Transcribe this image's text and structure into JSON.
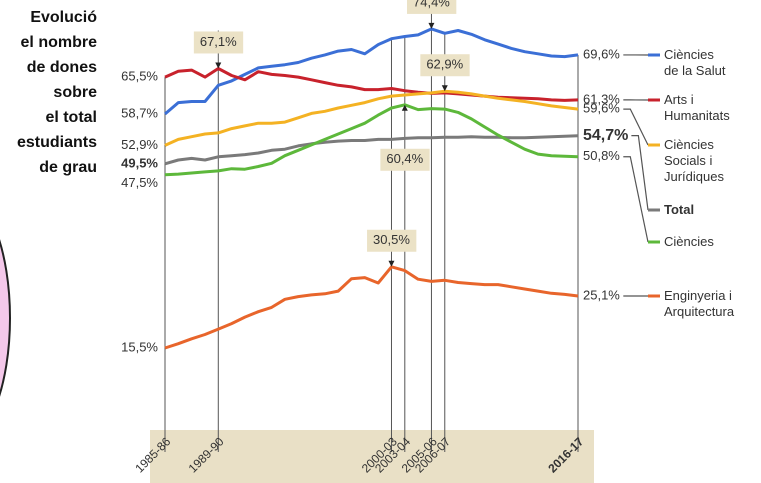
{
  "chart_data": {
    "type": "line",
    "title": [
      "Evolució",
      "el nombre",
      "de dones",
      "sobre",
      "el total",
      "estudiants",
      "de grau"
    ],
    "categories": [
      "1985-86",
      null,
      null,
      null,
      "1989-90",
      null,
      null,
      null,
      null,
      null,
      null,
      null,
      null,
      null,
      null,
      null,
      null,
      "2000-03",
      "2003-04",
      null,
      "2005-06",
      "2006-07",
      null,
      null,
      null,
      null,
      null,
      null,
      null,
      null,
      null,
      "2016-17"
    ],
    "ylim": [
      0,
      79
    ],
    "series": [
      {
        "name": "Ciències de la Salut",
        "color": "#3b6fd6",
        "values": [
          58.7,
          60.8,
          61.0,
          61.0,
          64.0,
          64.8,
          66.0,
          67.2,
          67.5,
          67.8,
          68.2,
          69.0,
          69.6,
          70.3,
          70.6,
          69.8,
          71.5,
          72.6,
          73.0,
          73.3,
          74.4,
          73.6,
          74.1,
          73.4,
          72.4,
          71.6,
          70.8,
          70.2,
          69.8,
          69.4,
          69.3,
          69.6
        ],
        "value_labels": [
          "58,7%",
          null,
          null,
          null,
          null,
          null,
          null,
          null,
          null,
          null,
          null,
          null,
          null,
          null,
          null,
          null,
          null,
          null,
          null,
          null,
          "74,4%",
          null,
          null,
          null,
          null,
          null,
          null,
          null,
          null,
          null,
          null,
          "69,6%"
        ]
      },
      {
        "name": "Arts i Humanitats",
        "color": "#c8222c",
        "values": [
          65.5,
          66.6,
          66.8,
          65.5,
          67.1,
          65.8,
          65.0,
          66.5,
          66.0,
          65.8,
          65.5,
          65.0,
          64.5,
          64.0,
          63.7,
          63.2,
          63.2,
          63.4,
          63.0,
          62.7,
          62.5,
          62.6,
          62.4,
          62.2,
          62.0,
          61.8,
          61.7,
          61.6,
          61.5,
          61.3,
          61.2,
          61.3
        ],
        "value_labels": [
          "65,5%",
          null,
          null,
          null,
          "67,1%",
          null,
          null,
          null,
          null,
          null,
          null,
          null,
          null,
          null,
          null,
          null,
          null,
          null,
          null,
          null,
          null,
          null,
          null,
          null,
          null,
          null,
          null,
          null,
          null,
          null,
          null,
          "61,3%"
        ]
      },
      {
        "name": "Ciències Socials i Jurídiques",
        "color": "#f4b223",
        "values": [
          52.9,
          54.0,
          54.5,
          55.0,
          55.2,
          56.0,
          56.5,
          57.0,
          57.0,
          57.2,
          58.0,
          58.8,
          59.2,
          59.8,
          60.3,
          60.8,
          61.5,
          62.0,
          62.2,
          62.4,
          62.6,
          62.9,
          62.7,
          62.4,
          62.0,
          61.6,
          61.3,
          61.0,
          60.6,
          60.2,
          59.9,
          59.6
        ],
        "value_labels": [
          "52,9%",
          null,
          null,
          null,
          null,
          null,
          null,
          null,
          null,
          null,
          null,
          null,
          null,
          null,
          null,
          null,
          null,
          null,
          null,
          null,
          null,
          "62,9%",
          null,
          null,
          null,
          null,
          null,
          null,
          null,
          null,
          null,
          "59,6%"
        ]
      },
      {
        "name": "Total",
        "color": "#7a7a7a",
        "bold": true,
        "values": [
          49.5,
          50.2,
          50.5,
          50.2,
          50.8,
          51.0,
          51.2,
          51.5,
          52.0,
          52.2,
          52.8,
          53.2,
          53.5,
          53.7,
          53.8,
          53.8,
          54.0,
          54.0,
          54.2,
          54.3,
          54.3,
          54.4,
          54.4,
          54.5,
          54.4,
          54.4,
          54.3,
          54.3,
          54.4,
          54.5,
          54.6,
          54.7
        ],
        "value_labels": [
          "49,5%",
          null,
          null,
          null,
          null,
          null,
          null,
          null,
          null,
          null,
          null,
          null,
          null,
          null,
          null,
          null,
          null,
          null,
          null,
          null,
          null,
          null,
          null,
          null,
          null,
          null,
          null,
          null,
          null,
          null,
          null,
          "54,7%"
        ]
      },
      {
        "name": "Ciències",
        "color": "#5db83b",
        "values": [
          47.5,
          47.6,
          47.8,
          48.0,
          48.2,
          48.6,
          48.5,
          49.0,
          49.6,
          51.0,
          52.0,
          53.0,
          54.0,
          55.0,
          56.0,
          57.0,
          58.5,
          59.8,
          60.4,
          59.5,
          59.7,
          59.6,
          59.0,
          57.8,
          56.3,
          54.8,
          53.5,
          52.2,
          51.3,
          51.0,
          50.9,
          50.8
        ],
        "value_labels": [
          "47,5%",
          null,
          null,
          null,
          null,
          null,
          null,
          null,
          null,
          null,
          null,
          null,
          null,
          null,
          null,
          null,
          null,
          null,
          "60,4%",
          null,
          null,
          null,
          null,
          null,
          null,
          null,
          null,
          null,
          null,
          null,
          null,
          "50,8%"
        ]
      },
      {
        "name": "Enginyeria i Arquitectura",
        "color": "#e8652b",
        "values": [
          15.5,
          16.3,
          17.2,
          18.0,
          19.0,
          20.0,
          21.2,
          22.2,
          23.0,
          24.5,
          25.0,
          25.3,
          25.5,
          26.0,
          28.3,
          28.5,
          27.5,
          30.5,
          29.8,
          28.2,
          27.8,
          28.0,
          27.6,
          27.4,
          27.2,
          27.2,
          26.8,
          26.4,
          26.0,
          25.6,
          25.4,
          25.1
        ],
        "value_labels": [
          "15,5%",
          null,
          null,
          null,
          null,
          null,
          null,
          null,
          null,
          null,
          null,
          null,
          null,
          null,
          null,
          null,
          null,
          "30,5%",
          null,
          null,
          null,
          null,
          null,
          null,
          null,
          null,
          null,
          null,
          null,
          null,
          null,
          "25,1%"
        ]
      }
    ]
  }
}
